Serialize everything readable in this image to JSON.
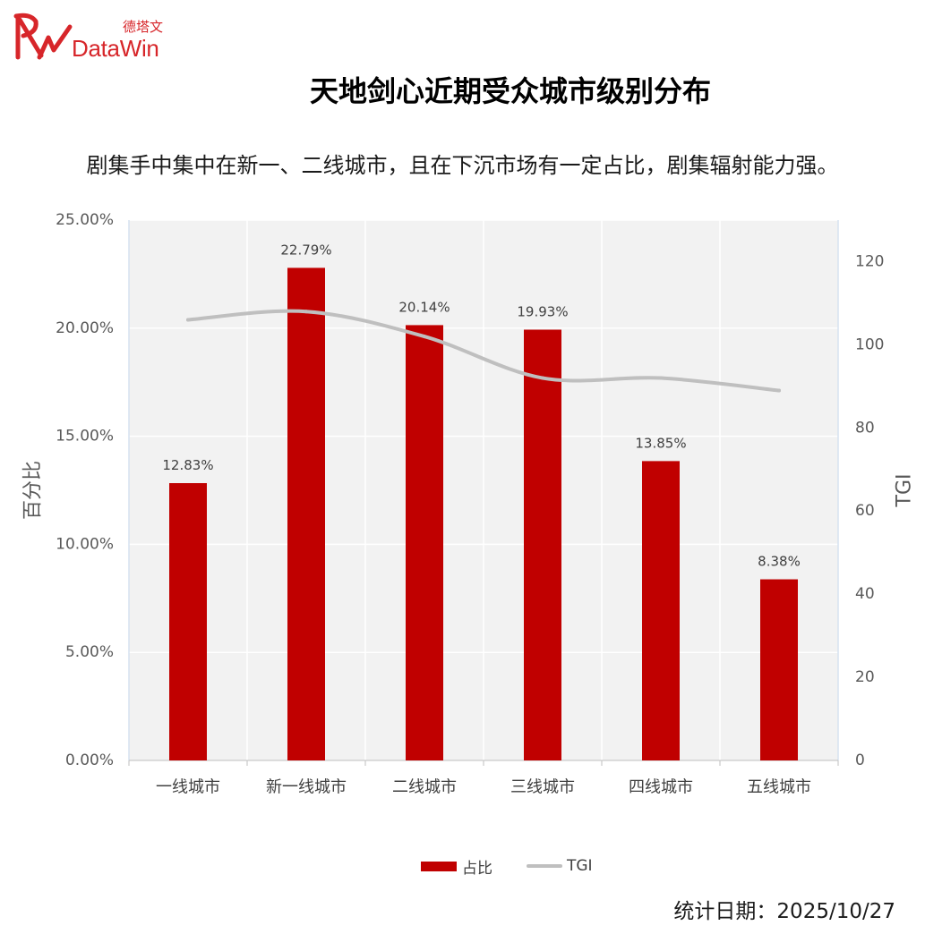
{
  "logo": {
    "cn": "德塔文",
    "en": "DataWin",
    "color": "#d7262a"
  },
  "header": {
    "title": "天地剑心近期受众城市级别分布",
    "subtitle": "剧集手中集中在新一、二线城市，且在下沉市场有一定占比，剧集辐射能力强。"
  },
  "chart_data": {
    "type": "bar",
    "categories": [
      "一线城市",
      "新一线城市",
      "二线城市",
      "三线城市",
      "四线城市",
      "五线城市"
    ],
    "series": [
      {
        "name": "占比",
        "type": "bar",
        "axis": "left",
        "color": "#c00000",
        "values": [
          12.83,
          22.79,
          20.14,
          19.93,
          13.85,
          8.38
        ],
        "data_labels": [
          "12.83%",
          "22.79%",
          "20.14%",
          "19.93%",
          "13.85%",
          "8.38%"
        ]
      },
      {
        "name": "TGI",
        "type": "line",
        "axis": "right",
        "color": "#bfbfbf",
        "values": [
          106,
          108,
          102,
          92,
          92,
          89
        ]
      }
    ],
    "ylabel": "百分比",
    "y2label": "TGI",
    "ylim": [
      0,
      25
    ],
    "y2lim": [
      0,
      130
    ],
    "yticks": [
      0,
      5,
      10,
      15,
      20,
      25
    ],
    "ytick_labels": [
      "0.00%",
      "5.00%",
      "10.00%",
      "15.00%",
      "20.00%",
      "25.00%"
    ],
    "y2ticks": [
      0,
      20,
      40,
      60,
      80,
      100,
      120
    ],
    "y2tick_labels": [
      "0",
      "20",
      "40",
      "60",
      "80",
      "100",
      "120"
    ],
    "grid": true,
    "legend": "bottom",
    "background": "#f2f2f2"
  },
  "footer": {
    "stat_date": "统计日期：2025/10/27"
  }
}
